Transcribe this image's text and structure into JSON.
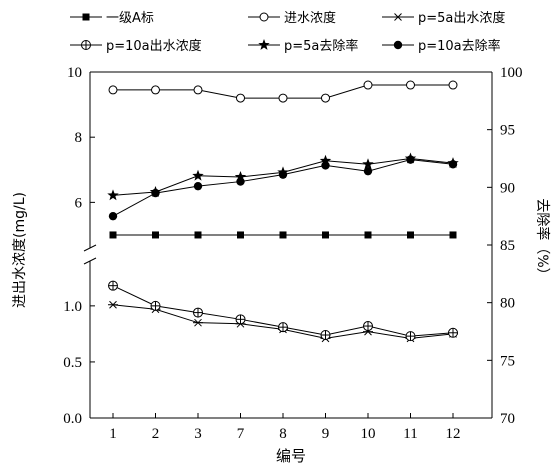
{
  "chart_data": {
    "type": "line",
    "categories": [
      "1",
      "2",
      "3",
      "7",
      "8",
      "9",
      "10",
      "11",
      "12"
    ],
    "xlabel": "编号",
    "ylabel_left": "进出水浓度(mg/L)",
    "ylabel_right": "去除率（%）",
    "left_axis_upper": {
      "ylim": [
        4.6,
        10
      ],
      "ticks": [
        "6",
        "8",
        "10"
      ]
    },
    "left_axis_lower": {
      "ylim": [
        0.0,
        1.4
      ],
      "ticks": [
        "0.0",
        "0.5",
        "1.0"
      ]
    },
    "right_axis": {
      "ylim": [
        70,
        100
      ],
      "ticks": [
        "70",
        "75",
        "80",
        "85",
        "90",
        "95",
        "100"
      ]
    },
    "legend_placement": "top",
    "grid": false,
    "series": [
      {
        "name": "一级A标",
        "marker": "filled-square",
        "axis": "left",
        "values": [
          5,
          5,
          5,
          5,
          5,
          5,
          5,
          5,
          5
        ]
      },
      {
        "name": "进水浓度",
        "marker": "open-circle",
        "axis": "left",
        "values": [
          9.45,
          9.45,
          9.45,
          9.2,
          9.2,
          9.2,
          9.6,
          9.6,
          9.6
        ]
      },
      {
        "name": "p=5a出水浓度",
        "marker": "asterisk",
        "axis": "left",
        "values": [
          1.01,
          0.97,
          0.85,
          0.84,
          0.79,
          0.71,
          0.77,
          0.71,
          0.75
        ]
      },
      {
        "name": "p=10a出水浓度",
        "marker": "crossed-circle",
        "axis": "left",
        "values": [
          1.18,
          1.0,
          0.94,
          0.88,
          0.81,
          0.74,
          0.82,
          0.73,
          0.76
        ]
      },
      {
        "name": "p=5a去除率",
        "marker": "filled-star",
        "axis": "right",
        "values": [
          89.3,
          89.6,
          91.0,
          90.9,
          91.3,
          92.3,
          92.0,
          92.5,
          92.1
        ]
      },
      {
        "name": "p=10a去除率",
        "marker": "filled-circle",
        "axis": "right",
        "values": [
          87.5,
          89.5,
          90.1,
          90.5,
          91.1,
          91.9,
          91.4,
          92.4,
          92.0
        ]
      }
    ]
  }
}
